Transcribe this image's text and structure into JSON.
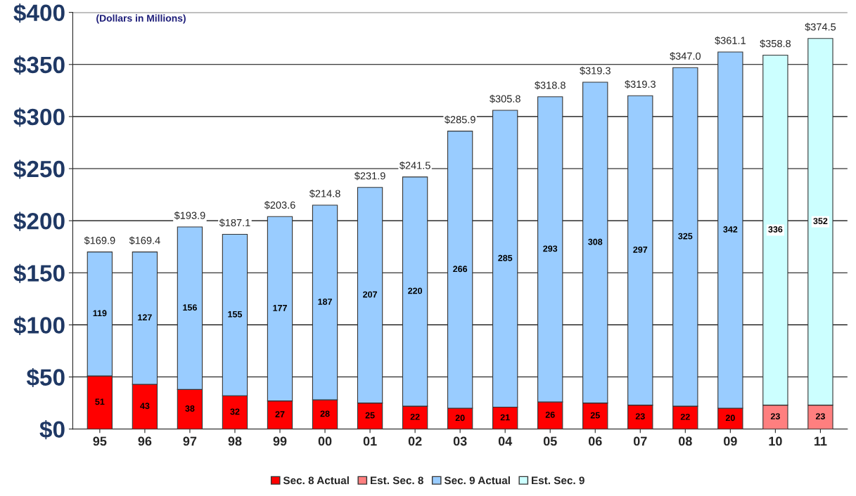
{
  "chart_data": {
    "type": "bar",
    "stacked": true,
    "categories": [
      "95",
      "96",
      "97",
      "98",
      "99",
      "00",
      "01",
      "02",
      "03",
      "04",
      "05",
      "06",
      "07",
      "08",
      "09",
      "10",
      "11"
    ],
    "series": [
      {
        "name": "Sec. 8 Actual",
        "color": "#ff0000",
        "values": [
          51,
          43,
          38,
          32,
          27,
          28,
          25,
          22,
          20,
          21,
          26,
          25,
          23,
          22,
          20,
          null,
          null
        ]
      },
      {
        "name": "Est. Sec. 8",
        "color": "#ff7f7f",
        "values": [
          null,
          null,
          null,
          null,
          null,
          null,
          null,
          null,
          null,
          null,
          null,
          null,
          null,
          null,
          null,
          23,
          23
        ]
      },
      {
        "name": "Sec. 9 Actual",
        "color": "#99ccff",
        "values": [
          119,
          127,
          156,
          155,
          177,
          187,
          207,
          220,
          266,
          285,
          293,
          308,
          297,
          325,
          342,
          null,
          null
        ]
      },
      {
        "name": "Est. Sec. 9",
        "color": "#ccffff",
        "values": [
          null,
          null,
          null,
          null,
          null,
          null,
          null,
          null,
          null,
          null,
          null,
          null,
          null,
          null,
          null,
          336,
          352
        ]
      }
    ],
    "data_labels": true,
    "ylim": [
      0,
      400
    ],
    "yticks": [
      {
        "value": 0,
        "label": "$0"
      },
      {
        "value": 50,
        "label": "$50"
      },
      {
        "value": 100,
        "label": "$100"
      },
      {
        "value": 150,
        "label": "$150"
      },
      {
        "value": 200,
        "label": "$200"
      },
      {
        "value": 250,
        "label": "$250"
      },
      {
        "value": 300,
        "label": "$300"
      },
      {
        "value": 350,
        "label": "$350"
      },
      {
        "value": 400,
        "label": "$400"
      }
    ],
    "grid": "y",
    "legend": "bottom",
    "annotations": [
      "(Dollars in Millions)",
      {
        "text": "$169.9",
        "x": "95",
        "y": 170
      },
      {
        "text": "$169.4",
        "x": "96",
        "y": 170
      },
      {
        "text": "$193.9",
        "x": "97",
        "y": 194
      },
      {
        "text": "$187.1",
        "x": "98",
        "y": 187
      },
      {
        "text": "$203.6",
        "x": "99",
        "y": 204
      },
      {
        "text": "$214.8",
        "x": "00",
        "y": 215
      },
      {
        "text": "$231.9",
        "x": "01",
        "y": 232
      },
      {
        "text": "$241.5",
        "x": "02",
        "y": 242
      },
      {
        "text": "$285.9",
        "x": "03",
        "y": 286
      },
      {
        "text": "$305.8",
        "x": "04",
        "y": 306
      },
      {
        "text": "$318.8",
        "x": "05",
        "y": 319
      },
      {
        "text": "$319.3",
        "x": "06",
        "y": 333
      },
      {
        "text": "$319.3",
        "x": "07",
        "y": 320
      },
      {
        "text": "$347.0",
        "x": "08",
        "y": 347
      },
      {
        "text": "$361.1",
        "x": "09",
        "y": 362
      },
      {
        "text": "$358.8",
        "x": "10",
        "y": 359
      },
      {
        "text": "$374.5",
        "x": "11",
        "y": 375
      }
    ]
  }
}
